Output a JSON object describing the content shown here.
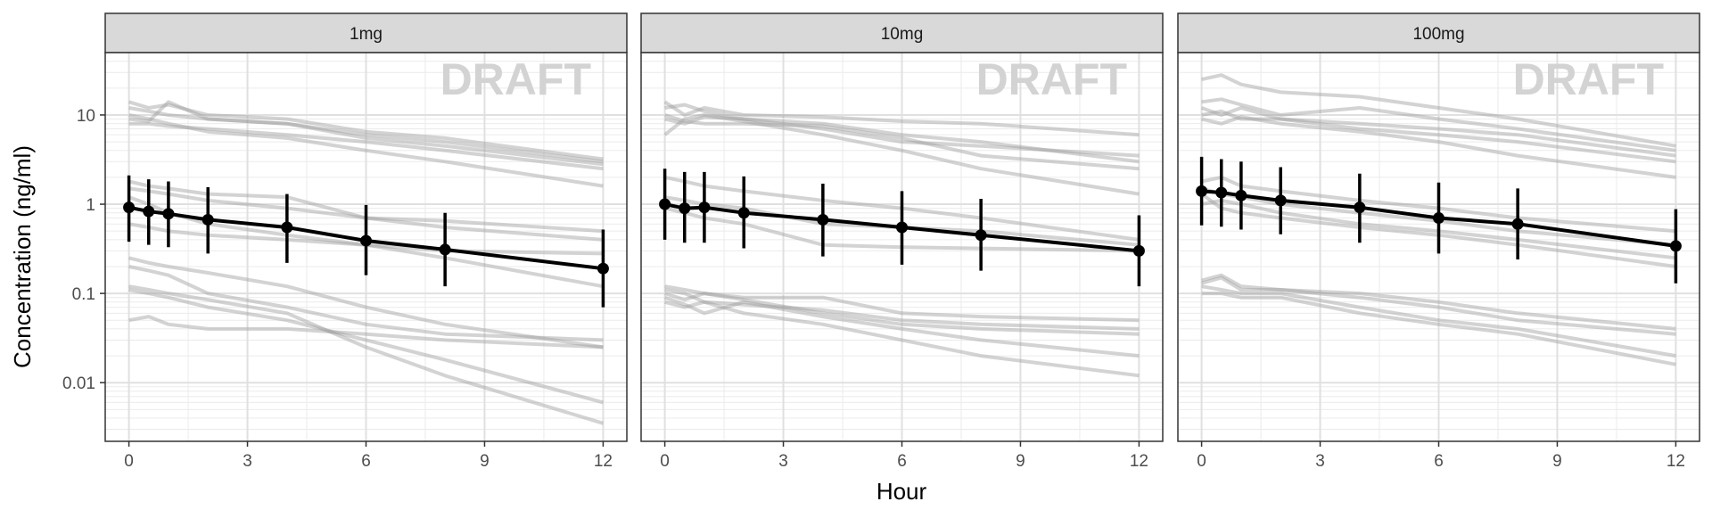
{
  "chart_data": {
    "type": "line",
    "xlabel": "Hour",
    "ylabel": "Concentration (ng/ml)",
    "x_ticks": [
      0,
      3,
      6,
      9,
      12
    ],
    "x_tick_labels": [
      "0",
      "3",
      "6",
      "9",
      "12"
    ],
    "xlim": [
      -0.6,
      12.6
    ],
    "y_scale": "log10",
    "ylim": [
      0.0022,
      50
    ],
    "y_ticks": [
      0.01,
      0.1,
      1,
      10
    ],
    "y_tick_labels": [
      "0.01",
      "0.1",
      "1",
      "10"
    ],
    "grid": true,
    "watermark": "DRAFT",
    "colors": {
      "individual_lines": "#9e9e9e",
      "mean_line": "#000000",
      "strip_fill": "#d9d9d9",
      "grid": "#ebebeb",
      "panel_border": "#333333",
      "watermark": "#d3d3d3"
    },
    "x": [
      0,
      0.5,
      1,
      2,
      4,
      6,
      8,
      12
    ],
    "panels": [
      {
        "strip_label": "1mg",
        "mean": {
          "values": [
            0.92,
            0.83,
            0.78,
            0.67,
            0.55,
            0.39,
            0.31,
            0.19
          ],
          "lower": [
            0.38,
            0.35,
            0.33,
            0.28,
            0.22,
            0.16,
            0.12,
            0.07
          ],
          "upper": [
            2.1,
            1.9,
            1.8,
            1.55,
            1.3,
            0.98,
            0.8,
            0.52
          ]
        },
        "individuals": [
          [
            14,
            12,
            13,
            10,
            9,
            6.5,
            5.5,
            3.2
          ],
          [
            12,
            11,
            10,
            9,
            8,
            6,
            5,
            3
          ],
          [
            9,
            8.5,
            14,
            9,
            8,
            5.5,
            4.5,
            2.8
          ],
          [
            8,
            8,
            7.5,
            7,
            6,
            5,
            4,
            2.5
          ],
          [
            10,
            9,
            8,
            6.5,
            5.5,
            4,
            3,
            1.6
          ],
          [
            1.8,
            1.6,
            1.5,
            1.3,
            1.2,
            0.7,
            0.65,
            0.5
          ],
          [
            1.5,
            1.4,
            1.3,
            1.1,
            0.9,
            0.7,
            0.55,
            0.4
          ],
          [
            1.2,
            1.0,
            0.8,
            0.6,
            0.45,
            0.35,
            0.25,
            0.12
          ],
          [
            0.6,
            0.55,
            0.5,
            0.45,
            0.4,
            0.35,
            0.3,
            0.28
          ],
          [
            0.25,
            0.22,
            0.2,
            0.17,
            0.12,
            0.07,
            0.045,
            0.025
          ],
          [
            0.2,
            0.18,
            0.16,
            0.1,
            0.07,
            0.045,
            0.035,
            0.03
          ],
          [
            0.12,
            0.11,
            0.1,
            0.085,
            0.06,
            0.025,
            0.012,
            0.0035
          ],
          [
            0.11,
            0.1,
            0.09,
            0.07,
            0.05,
            0.03,
            0.018,
            0.006
          ],
          [
            0.05,
            0.055,
            0.045,
            0.04,
            0.04,
            0.035,
            0.03,
            0.025
          ]
        ]
      },
      {
        "strip_label": "10mg",
        "mean": {
          "values": [
            1.0,
            0.9,
            0.92,
            0.8,
            0.67,
            0.55,
            0.45,
            0.3
          ],
          "lower": [
            0.4,
            0.37,
            0.37,
            0.32,
            0.26,
            0.21,
            0.18,
            0.12
          ],
          "upper": [
            2.5,
            2.3,
            2.3,
            2.05,
            1.7,
            1.4,
            1.15,
            0.75
          ]
        },
        "individuals": [
          [
            14,
            10,
            12,
            10,
            9.5,
            8.5,
            8,
            6
          ],
          [
            12,
            13,
            11,
            9,
            8,
            6,
            5,
            3
          ],
          [
            9,
            8,
            9.5,
            9,
            7,
            5,
            4.5,
            3.5
          ],
          [
            10,
            8.5,
            8,
            8,
            7.5,
            5.5,
            3.5,
            2.5
          ],
          [
            6,
            9,
            10,
            8.5,
            6,
            4,
            2.5,
            1.3
          ],
          [
            2,
            1.8,
            1.6,
            1.4,
            1.1,
            0.9,
            0.7,
            0.4
          ],
          [
            1.2,
            1.1,
            1.0,
            0.9,
            0.6,
            0.55,
            0.5,
            0.35
          ],
          [
            0.9,
            0.8,
            0.7,
            0.6,
            0.35,
            0.33,
            0.32,
            0.3
          ],
          [
            0.12,
            0.11,
            0.1,
            0.09,
            0.09,
            0.06,
            0.055,
            0.05
          ],
          [
            0.11,
            0.1,
            0.08,
            0.075,
            0.065,
            0.05,
            0.045,
            0.04
          ],
          [
            0.1,
            0.085,
            0.1,
            0.085,
            0.06,
            0.045,
            0.04,
            0.035
          ],
          [
            0.09,
            0.075,
            0.06,
            0.08,
            0.055,
            0.04,
            0.03,
            0.02
          ],
          [
            0.08,
            0.07,
            0.08,
            0.06,
            0.045,
            0.03,
            0.02,
            0.012
          ]
        ]
      },
      {
        "strip_label": "100mg",
        "mean": {
          "values": [
            1.4,
            1.35,
            1.25,
            1.1,
            0.92,
            0.7,
            0.6,
            0.34
          ],
          "lower": [
            0.58,
            0.56,
            0.52,
            0.46,
            0.37,
            0.28,
            0.24,
            0.13
          ],
          "upper": [
            3.4,
            3.2,
            3.0,
            2.6,
            2.2,
            1.75,
            1.5,
            0.88
          ]
        },
        "individuals": [
          [
            25,
            28,
            22,
            18,
            16,
            12,
            9,
            4.5
          ],
          [
            14,
            15,
            13,
            10,
            12,
            9,
            7,
            4
          ],
          [
            12,
            10,
            12,
            9,
            8,
            7,
            6,
            3.5
          ],
          [
            10,
            11,
            9,
            9,
            7,
            6,
            5,
            3
          ],
          [
            9,
            8,
            9.5,
            8,
            6.5,
            5,
            3.5,
            2
          ],
          [
            1.8,
            2.0,
            1.6,
            1.4,
            1.1,
            0.9,
            0.7,
            0.5
          ],
          [
            1.5,
            1.3,
            1.2,
            1.0,
            0.8,
            0.65,
            0.5,
            0.35
          ],
          [
            1.0,
            1.1,
            1.0,
            0.8,
            0.6,
            0.5,
            0.4,
            0.25
          ],
          [
            1.3,
            0.9,
            0.8,
            0.7,
            0.55,
            0.45,
            0.35,
            0.2
          ],
          [
            0.14,
            0.16,
            0.12,
            0.11,
            0.1,
            0.08,
            0.06,
            0.04
          ],
          [
            0.13,
            0.15,
            0.11,
            0.11,
            0.09,
            0.07,
            0.05,
            0.035
          ],
          [
            0.12,
            0.11,
            0.1,
            0.1,
            0.07,
            0.05,
            0.04,
            0.02
          ],
          [
            0.1,
            0.1,
            0.09,
            0.09,
            0.06,
            0.045,
            0.035,
            0.016
          ]
        ]
      }
    ]
  }
}
